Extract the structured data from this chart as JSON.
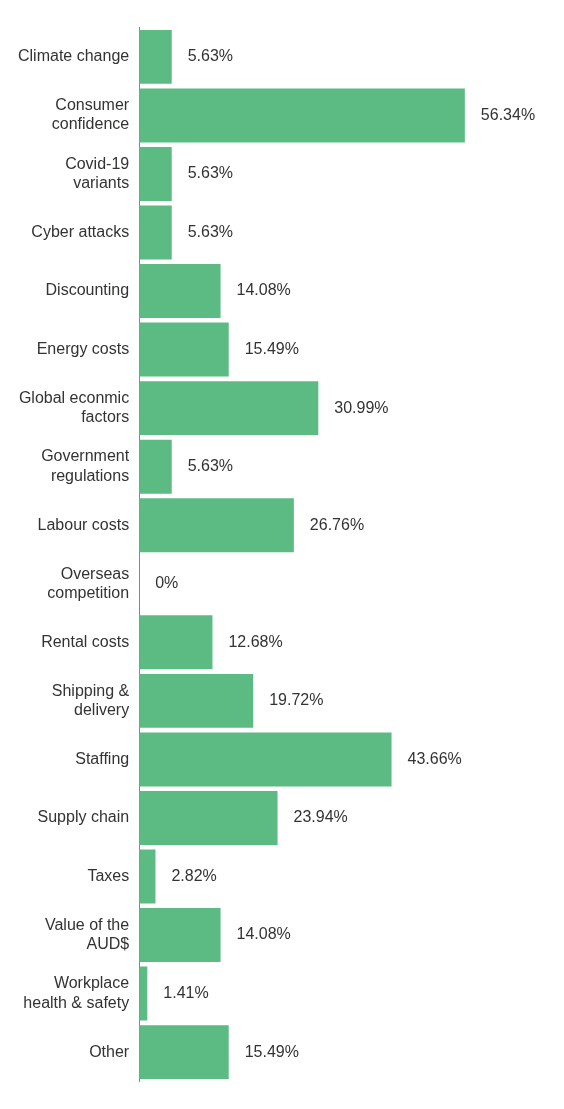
{
  "chart_data": {
    "type": "bar",
    "orientation": "horizontal",
    "categories": [
      "Climate change",
      "Consumer confidence",
      "Covid-19 variants",
      "Cyber attacks",
      "Discounting",
      "Energy costs",
      "Global econmic factors",
      "Government regulations",
      "Labour costs",
      "Overseas competition",
      "Rental costs",
      "Shipping & delivery",
      "Staffing",
      "Supply chain",
      "Taxes",
      "Value of the AUD$",
      "Workplace health & safety",
      "Other"
    ],
    "values": [
      5.63,
      56.34,
      5.63,
      5.63,
      14.08,
      15.49,
      30.99,
      5.63,
      26.76,
      0,
      12.68,
      19.72,
      43.66,
      23.94,
      2.82,
      14.08,
      1.41,
      15.49
    ],
    "value_labels": [
      "5.63%",
      "56.34%",
      "5.63%",
      "5.63%",
      "14.08%",
      "15.49%",
      "30.99%",
      "5.63%",
      "26.76%",
      "0%",
      "12.68%",
      "19.72%",
      "43.66%",
      "23.94%",
      "2.82%",
      "14.08%",
      "1.41%",
      "15.49%"
    ],
    "color": "#5bbb83"
  }
}
